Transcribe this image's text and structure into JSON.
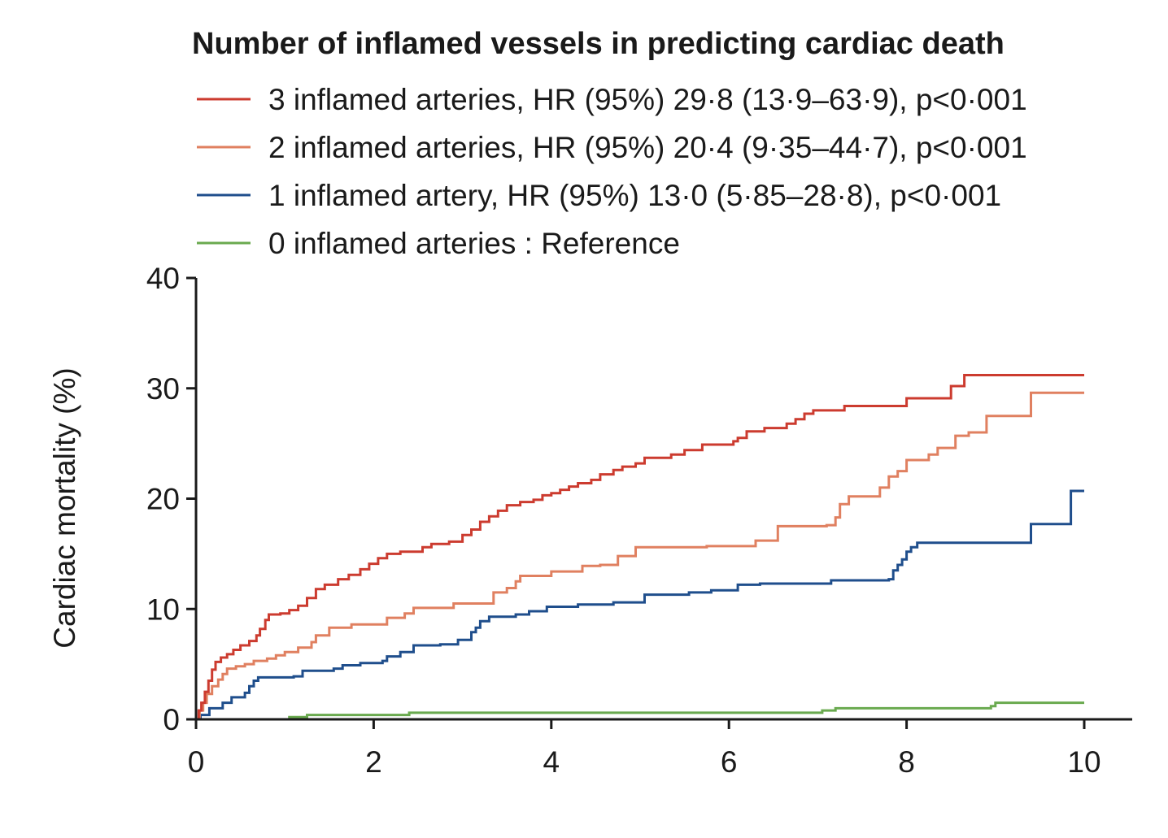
{
  "chart_data": {
    "type": "line",
    "title": "Number of inflamed vessels in predicting cardiac death",
    "xlabel": "",
    "ylabel": "Cardiac mortality (%)",
    "xlim": [
      0,
      10
    ],
    "ylim": [
      0,
      40
    ],
    "x_ticks": [
      0,
      2,
      4,
      6,
      8,
      10
    ],
    "y_ticks": [
      0,
      10,
      20,
      30,
      40
    ],
    "grid": false,
    "legend_position": "top",
    "step": true,
    "series": [
      {
        "name": "3 inflamed arteries, HR (95%) 29·8 (13·9–63·9), p<0·001",
        "color": "#cc3b2f",
        "points": [
          [
            0,
            0
          ],
          [
            0.03,
            0.8
          ],
          [
            0.06,
            1.5
          ],
          [
            0.1,
            2.5
          ],
          [
            0.14,
            3.5
          ],
          [
            0.18,
            4.5
          ],
          [
            0.22,
            5.2
          ],
          [
            0.28,
            5.6
          ],
          [
            0.35,
            5.9
          ],
          [
            0.42,
            6.3
          ],
          [
            0.5,
            6.7
          ],
          [
            0.6,
            7.1
          ],
          [
            0.68,
            7.6
          ],
          [
            0.72,
            8.2
          ],
          [
            0.78,
            9.0
          ],
          [
            0.82,
            9.5
          ],
          [
            0.95,
            9.6
          ],
          [
            1.05,
            9.9
          ],
          [
            1.15,
            10.3
          ],
          [
            1.25,
            11.0
          ],
          [
            1.35,
            11.8
          ],
          [
            1.45,
            12.2
          ],
          [
            1.6,
            12.7
          ],
          [
            1.72,
            13.1
          ],
          [
            1.85,
            13.6
          ],
          [
            1.95,
            14.1
          ],
          [
            2.05,
            14.6
          ],
          [
            2.15,
            15.0
          ],
          [
            2.3,
            15.2
          ],
          [
            2.55,
            15.6
          ],
          [
            2.65,
            15.9
          ],
          [
            2.85,
            16.1
          ],
          [
            3.0,
            16.7
          ],
          [
            3.1,
            17.2
          ],
          [
            3.2,
            17.9
          ],
          [
            3.3,
            18.4
          ],
          [
            3.4,
            18.9
          ],
          [
            3.5,
            19.4
          ],
          [
            3.65,
            19.7
          ],
          [
            3.8,
            19.9
          ],
          [
            3.9,
            20.3
          ],
          [
            4.0,
            20.5
          ],
          [
            4.1,
            20.8
          ],
          [
            4.2,
            21.1
          ],
          [
            4.3,
            21.4
          ],
          [
            4.45,
            21.7
          ],
          [
            4.55,
            22.2
          ],
          [
            4.7,
            22.6
          ],
          [
            4.8,
            22.9
          ],
          [
            4.95,
            23.2
          ],
          [
            5.05,
            23.7
          ],
          [
            5.35,
            24.0
          ],
          [
            5.5,
            24.4
          ],
          [
            5.7,
            24.9
          ],
          [
            6.05,
            25.2
          ],
          [
            6.1,
            25.5
          ],
          [
            6.2,
            26.1
          ],
          [
            6.4,
            26.4
          ],
          [
            6.65,
            26.8
          ],
          [
            6.75,
            27.2
          ],
          [
            6.85,
            27.7
          ],
          [
            6.95,
            28.0
          ],
          [
            7.3,
            28.4
          ],
          [
            8.0,
            29.1
          ],
          [
            8.5,
            30.2
          ],
          [
            8.65,
            31.2
          ],
          [
            10.0,
            31.2
          ]
        ]
      },
      {
        "name": "2 inflamed arteries, HR (95%) 20·4 (9·35–44·7), p<0·001",
        "color": "#e08060",
        "points": [
          [
            0,
            0
          ],
          [
            0.04,
            0.8
          ],
          [
            0.08,
            1.5
          ],
          [
            0.12,
            2.3
          ],
          [
            0.18,
            3.0
          ],
          [
            0.25,
            3.6
          ],
          [
            0.3,
            4.1
          ],
          [
            0.35,
            4.6
          ],
          [
            0.45,
            4.8
          ],
          [
            0.55,
            5.0
          ],
          [
            0.65,
            5.3
          ],
          [
            0.8,
            5.5
          ],
          [
            0.9,
            5.8
          ],
          [
            1.0,
            6.1
          ],
          [
            1.15,
            6.5
          ],
          [
            1.3,
            7.0
          ],
          [
            1.35,
            7.6
          ],
          [
            1.5,
            8.3
          ],
          [
            1.75,
            8.6
          ],
          [
            2.15,
            9.2
          ],
          [
            2.35,
            9.6
          ],
          [
            2.45,
            10.1
          ],
          [
            2.9,
            10.5
          ],
          [
            3.35,
            11.5
          ],
          [
            3.5,
            11.9
          ],
          [
            3.6,
            12.5
          ],
          [
            3.65,
            13.0
          ],
          [
            4.0,
            13.4
          ],
          [
            4.35,
            13.9
          ],
          [
            4.55,
            14.0
          ],
          [
            4.75,
            14.8
          ],
          [
            4.95,
            15.6
          ],
          [
            5.75,
            15.7
          ],
          [
            6.3,
            16.2
          ],
          [
            6.55,
            17.5
          ],
          [
            7.1,
            17.6
          ],
          [
            7.2,
            18.3
          ],
          [
            7.25,
            19.5
          ],
          [
            7.35,
            20.2
          ],
          [
            7.7,
            21.0
          ],
          [
            7.8,
            22.0
          ],
          [
            7.9,
            22.5
          ],
          [
            8.0,
            23.5
          ],
          [
            8.25,
            24.0
          ],
          [
            8.35,
            24.6
          ],
          [
            8.55,
            25.7
          ],
          [
            8.7,
            26.0
          ],
          [
            8.9,
            27.5
          ],
          [
            9.4,
            29.6
          ],
          [
            10.0,
            29.6
          ]
        ]
      },
      {
        "name": "1 inflamed artery, HR (95%) 13·0 (5·85–28·8), p<0·001",
        "color": "#1f4e8c",
        "points": [
          [
            0,
            0
          ],
          [
            0.05,
            0.4
          ],
          [
            0.15,
            1.0
          ],
          [
            0.3,
            1.5
          ],
          [
            0.4,
            2.0
          ],
          [
            0.55,
            2.4
          ],
          [
            0.6,
            3.0
          ],
          [
            0.65,
            3.5
          ],
          [
            0.7,
            3.8
          ],
          [
            1.1,
            3.9
          ],
          [
            1.2,
            4.4
          ],
          [
            1.55,
            4.6
          ],
          [
            1.65,
            4.9
          ],
          [
            1.85,
            5.1
          ],
          [
            2.1,
            5.3
          ],
          [
            2.15,
            5.7
          ],
          [
            2.3,
            6.1
          ],
          [
            2.45,
            6.7
          ],
          [
            2.75,
            6.8
          ],
          [
            2.95,
            7.2
          ],
          [
            3.1,
            7.9
          ],
          [
            3.15,
            8.3
          ],
          [
            3.2,
            8.9
          ],
          [
            3.3,
            9.3
          ],
          [
            3.6,
            9.5
          ],
          [
            3.75,
            9.8
          ],
          [
            3.95,
            10.2
          ],
          [
            4.3,
            10.4
          ],
          [
            4.7,
            10.6
          ],
          [
            5.05,
            11.3
          ],
          [
            5.55,
            11.5
          ],
          [
            5.8,
            11.7
          ],
          [
            6.1,
            12.2
          ],
          [
            6.35,
            12.3
          ],
          [
            7.15,
            12.6
          ],
          [
            7.8,
            12.7
          ],
          [
            7.85,
            13.5
          ],
          [
            7.9,
            14.0
          ],
          [
            7.95,
            14.5
          ],
          [
            8.0,
            15.2
          ],
          [
            8.05,
            15.6
          ],
          [
            8.12,
            16.0
          ],
          [
            9.4,
            17.7
          ],
          [
            9.85,
            20.7
          ],
          [
            10.0,
            20.7
          ]
        ]
      },
      {
        "name": "0 inflamed arteries : Reference",
        "color": "#6aaa4f",
        "points": [
          [
            0,
            0
          ],
          [
            1.05,
            0.2
          ],
          [
            1.25,
            0.4
          ],
          [
            2.4,
            0.6
          ],
          [
            7.05,
            0.8
          ],
          [
            7.2,
            1.0
          ],
          [
            8.95,
            1.2
          ],
          [
            9.0,
            1.5
          ],
          [
            10.0,
            1.5
          ]
        ]
      }
    ]
  }
}
